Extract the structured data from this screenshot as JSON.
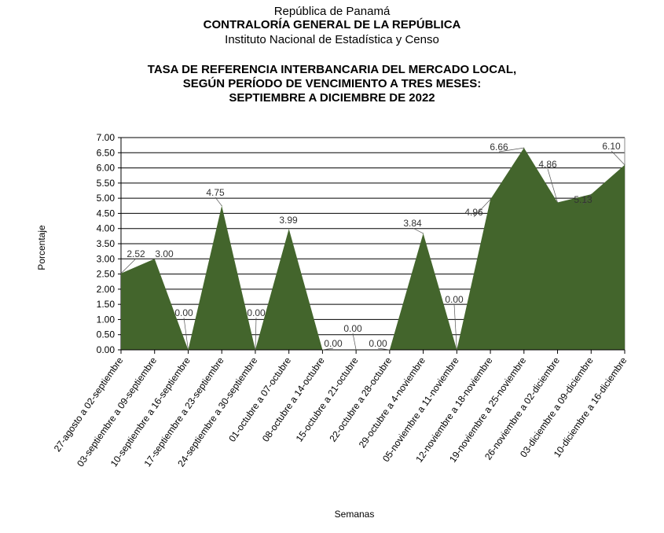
{
  "header": {
    "line1": "República de Panamá",
    "line2": "CONTRALORÍA GENERAL DE LA REPÚBLICA",
    "line3": "Instituto  Nacional de Estadística y Censo"
  },
  "chart_data": {
    "type": "area",
    "title": [
      "TASA DE REFERENCIA INTERBANCARIA DEL MERCADO LOCAL,",
      "SEGÚN PERÍODO DE VENCIMIENTO A TRES MESES:",
      "SEPTIEMBRE  A DICIEMBRE  DE 2022"
    ],
    "xlabel": "Semanas",
    "ylabel": "Porcentaje",
    "ylim": [
      0,
      7
    ],
    "yticks": [
      "0.00",
      "0.50",
      "1.00",
      "1.50",
      "2.00",
      "2.50",
      "3.00",
      "3.50",
      "4.00",
      "4.50",
      "5.00",
      "5.50",
      "6.00",
      "6.50",
      "7.00"
    ],
    "grid": true,
    "color": "#43652c",
    "categories": [
      "27-agosto a 02-septiembre",
      "03-septiembre  a 09-septiembre",
      "10-septiembre  a 16-septiembre",
      "17-septiembre  a 23-septiembre",
      "24-septiembre  a 30-septiembre",
      "01-octubre  a 07-octubre",
      "08-octubre  a 14-octubre",
      "15-octubre  a 21-octubre",
      "22-octubre  a 28-octubre",
      "29-octubre a 4-noviembre",
      "05-noviembre a 11-noviembre",
      "12-noviembre a 18-noviembre",
      "19-noviembre a 25-noviembre",
      "26-noviembre a 02-diciembre",
      "03-diciembre a 09-diciembre",
      "10-diciembre a 16-diciembre"
    ],
    "values": [
      2.52,
      3.0,
      0.0,
      4.75,
      0.0,
      3.99,
      0.0,
      0.0,
      0.0,
      3.84,
      0.0,
      4.96,
      6.66,
      4.86,
      5.13,
      6.1
    ],
    "labels": [
      "2.52",
      "3.00",
      "0.00",
      "4.75",
      "0.00",
      "3.99",
      "0.00",
      "0.00",
      "0.00",
      "3.84",
      "0.00",
      "4.96",
      "6.66",
      "4.86",
      "5.13",
      "6.10"
    ]
  }
}
